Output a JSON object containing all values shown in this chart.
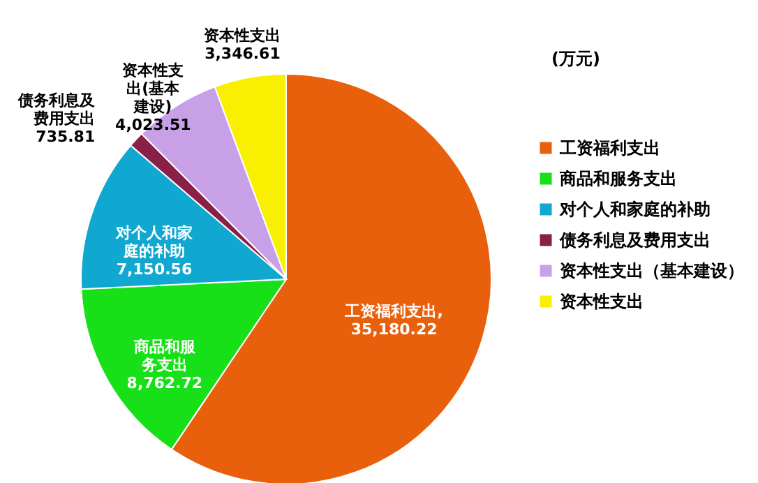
{
  "chart_data": {
    "type": "pie",
    "annotations": [
      "(万元)"
    ],
    "categories": [
      "工资福利支出",
      "商品和服务支出",
      "对个人和家庭的补助",
      "债务利息及费用支出",
      "资本性支出（基本建设）",
      "资本性支出"
    ],
    "values": [
      35180.22,
      8762.72,
      7150.56,
      735.81,
      4023.51,
      3346.61
    ],
    "colors": [
      "#e8600c",
      "#18e018",
      "#10a8d0",
      "#882048",
      "#c8a0e8",
      "#f8f000"
    ],
    "value_labels": [
      "工资福利支出,35,180.22",
      "商品和服务支出8,762.72",
      "对个人和家庭的补助7,150.56",
      "债务利息及费用支出735.81",
      "资本性支出(基本建设)4,023.51",
      "资本性支出3,346.61"
    ],
    "legend": "right"
  }
}
